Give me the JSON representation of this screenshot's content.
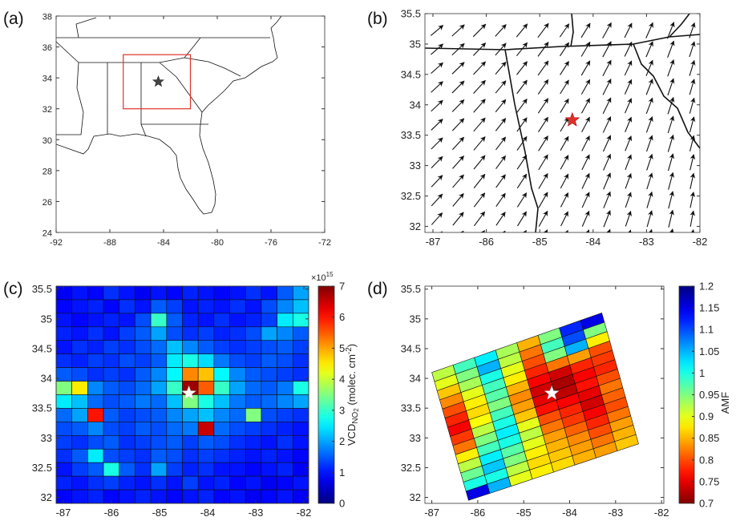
{
  "site": {
    "lon": -84.39,
    "lat": 33.75
  },
  "panels": [
    {
      "label": "(a)",
      "xlim": [
        -92,
        -72
      ],
      "xticks": [
        -92,
        -88,
        -84,
        -80,
        -76,
        -72
      ],
      "ylim": [
        24,
        38
      ],
      "yticks": [
        24,
        26,
        28,
        30,
        32,
        34,
        36,
        38
      ],
      "box": {
        "lon": [
          -87,
          -82
        ],
        "lat": [
          32,
          35.5
        ]
      }
    },
    {
      "label": "(b)",
      "xlim": [
        -87.15,
        -82
      ],
      "xticks": [
        -87,
        -86,
        -85,
        -84,
        -83,
        -82
      ],
      "ylim": [
        31.9,
        35.5
      ],
      "yticks": [
        32,
        32.5,
        33,
        33.5,
        34,
        34.5,
        35,
        35.5
      ]
    },
    {
      "label": "(c)",
      "xlim": [
        -87.15,
        -81.9
      ],
      "xticks": [
        -87,
        -86,
        -85,
        -84,
        -83,
        -82
      ],
      "ylim": [
        31.9,
        35.55
      ],
      "yticks": [
        32,
        32.5,
        33,
        33.5,
        34,
        34.5,
        35,
        35.5
      ],
      "colorbar": {
        "lim": [
          0,
          7
        ],
        "ticks": [
          0,
          1,
          2,
          3,
          4,
          5,
          6,
          7
        ],
        "scale_base": "×10",
        "scale_exp": "15",
        "title": [
          "VCD",
          "NO",
          "2",
          " (molec. cm",
          "-2",
          ")"
        ]
      },
      "values": [
        [
          0.8,
          1,
          0.9,
          1.2,
          1,
          0.8,
          1,
          0.9,
          1.1,
          1,
          0.9,
          1,
          1.2,
          1,
          1.5,
          2
        ],
        [
          0.9,
          1,
          1.1,
          0.9,
          1.2,
          1,
          1.5,
          1.3,
          1,
          1.1,
          1,
          1.2,
          1,
          1.4,
          1.8,
          2.2
        ],
        [
          1,
          0.9,
          1,
          1.1,
          1,
          1.4,
          3,
          1.5,
          1.1,
          1,
          1.2,
          1,
          1.1,
          1.3,
          2.5,
          2.8
        ],
        [
          1.1,
          1,
          1.2,
          1,
          1.3,
          1.5,
          2,
          1.4,
          1.2,
          1.3,
          1.1,
          1.2,
          1.4,
          2,
          1.8,
          1.5
        ],
        [
          1,
          1.2,
          1.1,
          1.3,
          1.2,
          1.4,
          1.6,
          2.2,
          1.8,
          1.5,
          1.3,
          1.2,
          1.3,
          1.4,
          1.5,
          1.3
        ],
        [
          1.2,
          1.1,
          1.3,
          1.2,
          1.4,
          1.3,
          1.5,
          2.5,
          2.8,
          2.4,
          1.7,
          1.4,
          1.3,
          1.5,
          1.4,
          1.2
        ],
        [
          1.5,
          1.4,
          1.2,
          1.3,
          1.2,
          1.5,
          1.8,
          2.6,
          5.2,
          4.8,
          2.6,
          1.8,
          1.5,
          1.4,
          1.3,
          1.2
        ],
        [
          3.5,
          4.5,
          1.8,
          1.5,
          1.4,
          1.6,
          2,
          3,
          6.8,
          5.5,
          3,
          2,
          1.6,
          1.5,
          1.7,
          2.8
        ],
        [
          2.5,
          2.2,
          1.6,
          1.4,
          1.5,
          1.7,
          1.6,
          2.2,
          3.5,
          2.8,
          2.2,
          1.7,
          1.5,
          1.6,
          1.8,
          2
        ],
        [
          1.6,
          2,
          6,
          1.5,
          1.3,
          1.4,
          1.5,
          1.8,
          2,
          2.2,
          1.8,
          1.6,
          3.5,
          1.4,
          1.3,
          1.2
        ],
        [
          1.4,
          1.5,
          1.8,
          1.4,
          1.3,
          1.5,
          1.4,
          1.6,
          1.7,
          6.5,
          1.6,
          1.4,
          1.3,
          1.2,
          1.1,
          1
        ],
        [
          1.3,
          1.2,
          1.4,
          1.5,
          1.2,
          1.3,
          1.4,
          1.5,
          1.3,
          1.5,
          1.4,
          1.2,
          1.1,
          1,
          1.2,
          1
        ],
        [
          1.2,
          1.5,
          2.5,
          1.4,
          1.3,
          1.2,
          1.5,
          1.4,
          1.2,
          1.3,
          1.2,
          1.1,
          1,
          1.1,
          1,
          0.9
        ],
        [
          1,
          1.3,
          1.5,
          2.8,
          1.5,
          1.2,
          2,
          1.3,
          1.1,
          1.2,
          1,
          1,
          0.9,
          1,
          1.1,
          0.8
        ],
        [
          1.1,
          1,
          1.2,
          1.3,
          1.1,
          1,
          1.2,
          1,
          1.3,
          1,
          1.1,
          0.9,
          1,
          0.8,
          0.9,
          1
        ],
        [
          0.9,
          1,
          1.1,
          0.9,
          1,
          1.1,
          1,
          0.9,
          1,
          1.1,
          0.9,
          1,
          0.8,
          0.9,
          1,
          0.8
        ]
      ]
    },
    {
      "label": "(d)",
      "xlim": [
        -87.15,
        -81.95
      ],
      "xticks": [
        -87,
        -86,
        -85,
        -84,
        -83,
        -82
      ],
      "ylim": [
        31.9,
        35.55
      ],
      "yticks": [
        32,
        32.5,
        33,
        33.5,
        34,
        34.5,
        35,
        35.5
      ],
      "colorbar": {
        "lim": [
          0.7,
          1.2
        ],
        "ticks": [
          0.7,
          0.75,
          0.8,
          0.85,
          0.9,
          0.95,
          1,
          1.05,
          1.1,
          1.15,
          1.2
        ],
        "title": [
          "AMF"
        ]
      },
      "swath_corners": [
        [
          -87,
          34.1
        ],
        [
          -83.3,
          35.1
        ],
        [
          -82.5,
          32.9
        ],
        [
          -86.2,
          31.95
        ]
      ],
      "values": [
        [
          0.92,
          0.98,
          1.02,
          0.93,
          0.85,
          0.95,
          1.12,
          1.15
        ],
        [
          0.9,
          0.95,
          1.05,
          0.92,
          0.82,
          0.98,
          1.1,
          0.95
        ],
        [
          0.86,
          0.93,
          1,
          0.9,
          0.8,
          0.95,
          1.05,
          0.88
        ],
        [
          0.83,
          0.9,
          0.98,
          0.88,
          0.78,
          0.82,
          0.84,
          0.8
        ],
        [
          0.8,
          0.88,
          0.97,
          0.85,
          0.76,
          0.74,
          0.78,
          0.79
        ],
        [
          0.78,
          0.87,
          0.95,
          0.83,
          0.74,
          0.72,
          0.76,
          0.78
        ],
        [
          0.76,
          0.89,
          0.98,
          0.84,
          0.75,
          0.73,
          0.77,
          0.8
        ],
        [
          0.79,
          0.92,
          1,
          0.86,
          0.77,
          0.76,
          0.75,
          0.82
        ],
        [
          0.82,
          0.95,
          1.02,
          0.9,
          0.8,
          0.78,
          0.74,
          0.81
        ],
        [
          0.88,
          0.98,
          1,
          0.92,
          0.82,
          0.79,
          0.76,
          0.8
        ],
        [
          0.92,
          1.02,
          0.97,
          0.9,
          0.84,
          0.81,
          0.78,
          0.82
        ],
        [
          0.96,
          1.04,
          0.95,
          0.88,
          0.85,
          0.83,
          0.8,
          0.84
        ],
        [
          1,
          1,
          0.92,
          0.87,
          0.86,
          0.84,
          0.82,
          0.85
        ],
        [
          1.15,
          1.05,
          0.9,
          0.88,
          0.87,
          0.85,
          0.84,
          0.86
        ]
      ]
    }
  ]
}
